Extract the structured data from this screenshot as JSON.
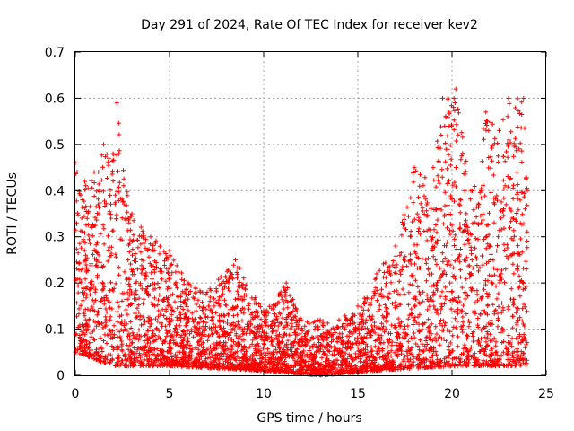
{
  "chart_data": {
    "type": "scatter",
    "title": "Day 291 of 2024, Rate Of TEC Index for receiver kev2",
    "xlabel": "GPS time / hours",
    "ylabel": "ROTI / TECUs",
    "xlim": [
      0,
      25
    ],
    "ylim": [
      0,
      0.7
    ],
    "xticks": [
      0,
      5,
      10,
      15,
      20,
      25
    ],
    "yticks": [
      0,
      0.1,
      0.2,
      0.3,
      0.4,
      0.5,
      0.6,
      0.7
    ],
    "xtick_labels": [
      "0",
      "5",
      "10",
      "15",
      "20",
      "25"
    ],
    "ytick_labels": [
      "0",
      "0.1",
      "0.2",
      "0.3",
      "0.4",
      "0.5",
      "0.6",
      "0.7"
    ],
    "grid": true,
    "marker": "+",
    "color": "#ff0000",
    "x_range_observed": [
      0,
      24
    ],
    "envelope_upper": [
      {
        "x": 0.0,
        "y": 0.46
      },
      {
        "x": 0.5,
        "y": 0.42
      },
      {
        "x": 1.0,
        "y": 0.44
      },
      {
        "x": 1.5,
        "y": 0.5
      },
      {
        "x": 2.0,
        "y": 0.48
      },
      {
        "x": 2.2,
        "y": 0.59
      },
      {
        "x": 3.0,
        "y": 0.35
      },
      {
        "x": 4.0,
        "y": 0.3
      },
      {
        "x": 5.0,
        "y": 0.27
      },
      {
        "x": 6.0,
        "y": 0.2
      },
      {
        "x": 7.0,
        "y": 0.18
      },
      {
        "x": 8.5,
        "y": 0.25
      },
      {
        "x": 10.0,
        "y": 0.14
      },
      {
        "x": 11.2,
        "y": 0.2
      },
      {
        "x": 12.0,
        "y": 0.12
      },
      {
        "x": 13.0,
        "y": 0.12
      },
      {
        "x": 14.0,
        "y": 0.12
      },
      {
        "x": 15.0,
        "y": 0.15
      },
      {
        "x": 16.0,
        "y": 0.22
      },
      {
        "x": 17.0,
        "y": 0.28
      },
      {
        "x": 18.0,
        "y": 0.45
      },
      {
        "x": 19.0,
        "y": 0.45
      },
      {
        "x": 19.5,
        "y": 0.6
      },
      {
        "x": 20.2,
        "y": 0.62
      },
      {
        "x": 21.0,
        "y": 0.4
      },
      {
        "x": 21.8,
        "y": 0.57
      },
      {
        "x": 22.5,
        "y": 0.53
      },
      {
        "x": 23.0,
        "y": 0.6
      },
      {
        "x": 23.8,
        "y": 0.6
      },
      {
        "x": 24.0,
        "y": 0.4
      }
    ],
    "envelope_lower": [
      {
        "x": 0.0,
        "y": 0.05
      },
      {
        "x": 2.0,
        "y": 0.02
      },
      {
        "x": 5.0,
        "y": 0.02
      },
      {
        "x": 10.0,
        "y": 0.01
      },
      {
        "x": 13.0,
        "y": 0.0
      },
      {
        "x": 16.0,
        "y": 0.01
      },
      {
        "x": 20.0,
        "y": 0.02
      },
      {
        "x": 24.0,
        "y": 0.02
      }
    ]
  }
}
